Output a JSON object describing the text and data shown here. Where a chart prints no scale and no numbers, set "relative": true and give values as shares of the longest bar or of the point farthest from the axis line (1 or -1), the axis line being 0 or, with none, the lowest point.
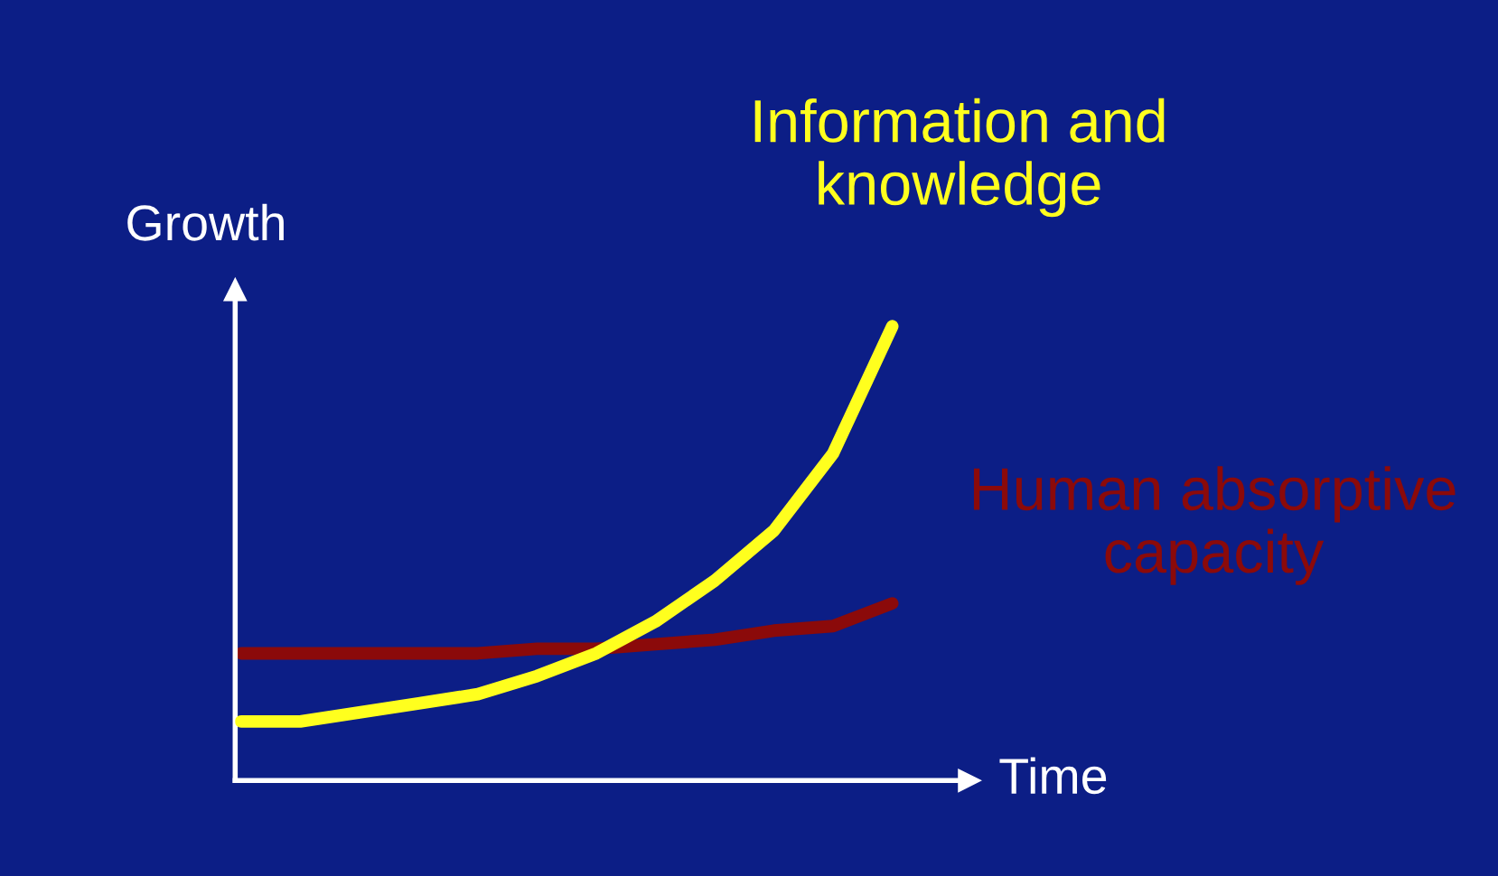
{
  "chart_data": {
    "type": "line",
    "relative": true,
    "xlabel": "Time",
    "ylabel": "Growth",
    "categories": [
      null,
      null,
      null,
      null,
      null,
      null,
      null,
      null,
      null,
      null,
      null,
      null
    ],
    "series": [
      {
        "name": "Information and knowledge",
        "color": "#ffff1e",
        "values": [
          0.13,
          0.13,
          0.15,
          0.17,
          0.19,
          0.23,
          0.28,
          0.35,
          0.44,
          0.55,
          0.72,
          1.0
        ]
      },
      {
        "name": "Human absorptive capacity",
        "color": "#8b0a0a",
        "values": [
          0.28,
          0.28,
          0.28,
          0.28,
          0.28,
          0.29,
          0.29,
          0.3,
          0.31,
          0.33,
          0.34,
          0.39
        ]
      }
    ],
    "marker": "none",
    "line_style": "solid"
  }
}
